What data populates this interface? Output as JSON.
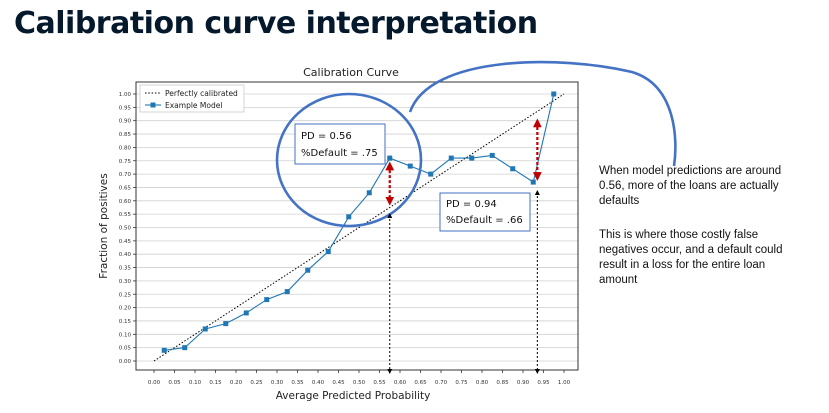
{
  "slide": {
    "title": "Calibration curve interpretation",
    "note_1": "When model predictions are around 0.56, more of the loans are actually defaults",
    "note_2": "This is where those costly false negatives occur, and a default could result in a loss for the entire loan amount"
  },
  "chart_data": {
    "type": "line",
    "title": "Calibration Curve",
    "xlabel": "Average Predicted Probability",
    "ylabel": "Fraction of positives",
    "xlim": [
      0,
      1
    ],
    "ylim": [
      0,
      1
    ],
    "x_ticks": [
      "0.00",
      "0.05",
      "0.10",
      "0.15",
      "0.20",
      "0.25",
      "0.30",
      "0.35",
      "0.40",
      "0.45",
      "0.50",
      "0.55",
      "0.60",
      "0.65",
      "0.70",
      "0.75",
      "0.80",
      "0.85",
      "0.90",
      "0.95",
      "1.00"
    ],
    "y_ticks": [
      "0.00",
      "0.05",
      "0.10",
      "0.15",
      "0.20",
      "0.25",
      "0.30",
      "0.35",
      "0.40",
      "0.45",
      "0.50",
      "0.55",
      "0.60",
      "0.65",
      "0.70",
      "0.75",
      "0.80",
      "0.85",
      "0.90",
      "0.95",
      "1.00"
    ],
    "grid": "horizontal",
    "legend_position": "top-left",
    "series": [
      {
        "name": "Perfectly calibrated",
        "style": "dotted",
        "color": "#000000",
        "x": [
          0,
          1
        ],
        "y": [
          0,
          1
        ]
      },
      {
        "name": "Example Model",
        "style": "line-square-markers",
        "color": "#1f77b4",
        "x": [
          0.025,
          0.075,
          0.125,
          0.175,
          0.225,
          0.275,
          0.325,
          0.375,
          0.425,
          0.475,
          0.525,
          0.575,
          0.625,
          0.675,
          0.725,
          0.775,
          0.825,
          0.875,
          0.925,
          0.975
        ],
        "y": [
          0.04,
          0.05,
          0.12,
          0.14,
          0.18,
          0.23,
          0.26,
          0.34,
          0.41,
          0.54,
          0.63,
          0.76,
          0.73,
          0.7,
          0.76,
          0.76,
          0.77,
          0.72,
          0.67,
          1.0
        ]
      }
    ],
    "annotations": [
      {
        "label_1": "PD = 0.56",
        "label_2": "%Default = .75",
        "x": 0.575,
        "y_low": 0.58,
        "y_high": 0.76
      },
      {
        "label_1": "PD = 0.94",
        "label_2": "%Default = .66",
        "x": 0.935,
        "y_low": 0.68,
        "y_high": 0.91
      }
    ],
    "colors": {
      "model_line": "#1f77b4",
      "highlight_circle": "#4472c4",
      "arrow_red": "#c00000",
      "label_border": "#4472c4"
    }
  }
}
